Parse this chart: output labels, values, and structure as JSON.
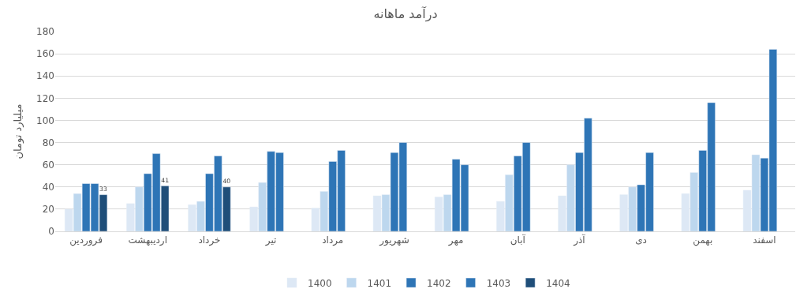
{
  "chart_data": {
    "type": "bar",
    "title": "درآمد ماهانه",
    "ylabel": "میلیارد تومان",
    "categories": [
      "فروردین",
      "اردیبهشت",
      "خرداد",
      "تیر",
      "مرداد",
      "شهریور",
      "مهر",
      "آبان",
      "آذر",
      "دی",
      "بهمن",
      "اسفند"
    ],
    "series": [
      {
        "name": "1400",
        "color": "#dde8f5",
        "values": [
          20,
          25,
          24,
          22,
          21,
          32,
          31,
          27,
          32,
          33,
          34,
          37
        ]
      },
      {
        "name": "1401",
        "color": "#bdd7ee",
        "values": [
          34,
          40,
          27,
          44,
          36,
          33,
          33,
          51,
          60,
          40,
          53,
          69
        ]
      },
      {
        "name": "1402",
        "color": "#2e75b6",
        "values": [
          43,
          52,
          52,
          72,
          63,
          71,
          65,
          68,
          71,
          42,
          73,
          66
        ]
      },
      {
        "name": "1403",
        "color": "#2e75b6",
        "values": [
          43,
          70,
          68,
          71,
          73,
          80,
          60,
          80,
          102,
          71,
          116,
          164
        ]
      },
      {
        "name": "1404",
        "color": "#1f4e79",
        "values": [
          33,
          41,
          40,
          null,
          null,
          null,
          null,
          null,
          null,
          null,
          null,
          null
        ],
        "value_labels": [
          "33",
          "41",
          "40",
          null,
          null,
          null,
          null,
          null,
          null,
          null,
          null,
          null
        ]
      }
    ],
    "ylim": [
      0,
      180
    ],
    "yticks": [
      0,
      20,
      40,
      60,
      80,
      100,
      120,
      140,
      160,
      180
    ],
    "grid": "y",
    "legend": "bottom"
  }
}
